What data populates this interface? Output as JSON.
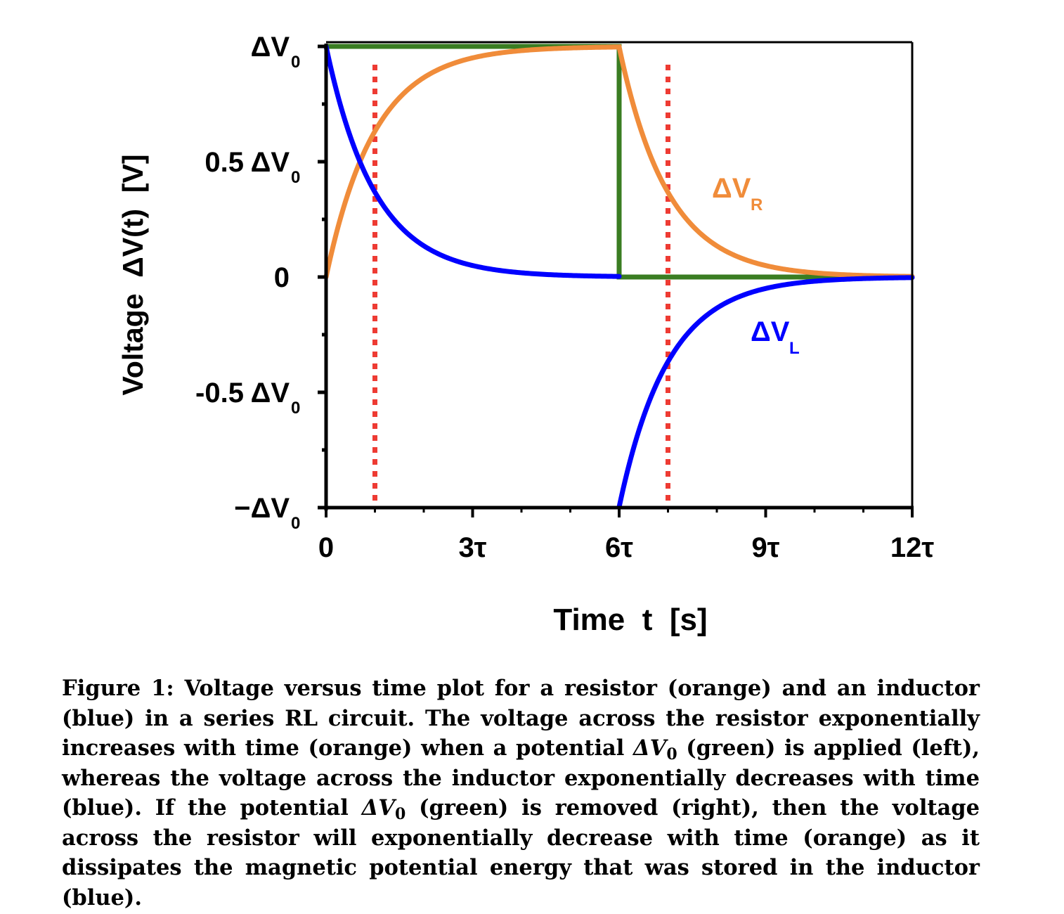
{
  "chart_data": {
    "type": "line",
    "xlabel": "Time  t  [s]",
    "ylabel": "Voltage  ΔV(t)  [V]",
    "xlim": [
      0,
      12
    ],
    "ylim": [
      -1,
      1
    ],
    "x_ticks": [
      {
        "value": 0,
        "label": "0"
      },
      {
        "value": 3,
        "label": "3τ"
      },
      {
        "value": 6,
        "label": "6τ"
      },
      {
        "value": 9,
        "label": "9τ"
      },
      {
        "value": 12,
        "label": "12τ"
      }
    ],
    "x_minor_step": 1,
    "y_ticks": [
      {
        "value": 1,
        "label": "ΔV",
        "sub": "0"
      },
      {
        "value": 0.5,
        "label": "0.5 ΔV",
        "sub": "0"
      },
      {
        "value": 0,
        "label": "0",
        "sub": ""
      },
      {
        "value": -0.5,
        "label": "-0.5 ΔV",
        "sub": "0"
      },
      {
        "value": -1,
        "label": "−ΔV",
        "sub": "0"
      }
    ],
    "y_minor_step": 0.25,
    "series": [
      {
        "name": "ΔV_R",
        "color": "#F08C3A",
        "x": [
          0,
          0.25,
          0.5,
          0.75,
          1,
          1.5,
          2,
          2.5,
          3,
          4,
          5,
          6,
          6.25,
          6.5,
          6.75,
          7,
          7.5,
          8,
          8.5,
          9,
          10,
          11,
          12
        ],
        "y": [
          0,
          0.221,
          0.393,
          0.528,
          0.632,
          0.777,
          0.865,
          0.918,
          0.95,
          0.982,
          0.993,
          0.998,
          0.777,
          0.605,
          0.471,
          0.367,
          0.223,
          0.135,
          0.082,
          0.05,
          0.018,
          0.007,
          0.002
        ]
      },
      {
        "name": "ΔV_L",
        "color": "#0000FF",
        "x": [
          0,
          0.25,
          0.5,
          0.75,
          1,
          1.5,
          2,
          2.5,
          3,
          4,
          5,
          6,
          6,
          6.25,
          6.5,
          6.75,
          7,
          7.5,
          8,
          8.5,
          9,
          10,
          11,
          12
        ],
        "y": [
          1,
          0.779,
          0.607,
          0.472,
          0.368,
          0.223,
          0.135,
          0.082,
          0.05,
          0.018,
          0.007,
          0.002,
          -0.998,
          -0.777,
          -0.605,
          -0.471,
          -0.367,
          -0.223,
          -0.135,
          -0.082,
          -0.05,
          -0.018,
          -0.007,
          -0.002
        ]
      },
      {
        "name": "ΔV_0 applied",
        "color": "#3A7D22",
        "x": [
          0,
          6,
          6,
          12
        ],
        "y": [
          1,
          1,
          0,
          0
        ]
      }
    ],
    "markers": [
      {
        "type": "vertical-dotted-line",
        "x": 1,
        "color": "#EE3B33"
      },
      {
        "type": "vertical-dotted-line",
        "x": 7,
        "color": "#EE3B33"
      }
    ],
    "annotations": [
      {
        "text": "ΔV",
        "sub": "R",
        "color": "#F08C3A"
      },
      {
        "text": "ΔV",
        "sub": "L",
        "color": "#0000FF"
      }
    ]
  },
  "caption": {
    "p1": "Figure 1:  Voltage versus time plot for a resistor (orange) and an inductor (blue) in a series RL circuit.  The voltage across the resistor exponentially increases with time (orange) when a potential ",
    "m1": "ΔV",
    "m1sub": "0",
    "p2": " (green) is applied (left), whereas the voltage across the inductor exponentially decreases with time (blue).  If the potential ",
    "m2": "ΔV",
    "m2sub": "0",
    "p3": " (green) is removed (right), then the voltage across the resistor will exponentially decrease with time (orange) as it dissipates the magnetic potential energy that was stored in the inductor (blue)."
  }
}
